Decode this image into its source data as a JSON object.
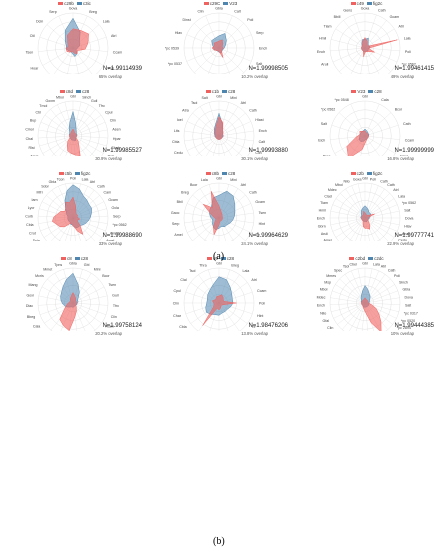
{
  "captions": {
    "a": "(a)",
    "b": "(b)"
  },
  "colors": {
    "red": "#f0625f",
    "blue": "#4f86b0",
    "grid": "#d8d8d8"
  },
  "panels": [
    {
      "id": "p1",
      "s1": "c29b",
      "s2": "c3ic",
      "n": "N=1.99114939",
      "overlap": "65% overlap",
      "labels": [
        "Gova",
        "Breg",
        "Lala",
        "Atrl",
        "Ccam",
        "Poli",
        "Gsol",
        "Salt",
        "Dcin",
        "Bcer",
        "Hoar",
        "Tsen",
        "Ctil",
        "Dcin",
        "Serp"
      ],
      "red": [
        0.55,
        0.55,
        0.6,
        0.45,
        0.35,
        0.15,
        0.2,
        0.15,
        0.1,
        0.15,
        0.2,
        0.2,
        0.15,
        0.2,
        0.4
      ],
      "blue": [
        0.85,
        0.5,
        0.25,
        0.2,
        0.12,
        0.1,
        0.2,
        0.25,
        0.15,
        0.12,
        0.15,
        0.2,
        0.2,
        0.3,
        0.55
      ]
    },
    {
      "id": "p2",
      "s1": "c29C",
      "s2": "V23",
      "n": "N=1.99998505",
      "overlap": "10.2% overlap",
      "labels": [
        "Gbla",
        "Calt",
        "Poli",
        "Serp",
        "Ench",
        "Salt",
        "Bcer",
        "Hpar",
        "Ctrn",
        "Gsol",
        "Amel",
        "*pc 0537",
        "*pc 0539",
        "Hlav",
        "Dinst",
        "Clin"
      ],
      "red": [
        0.2,
        0.25,
        0.15,
        0.1,
        0.12,
        0.1,
        0.1,
        0.3,
        0.1,
        0.08,
        0.1,
        0.15,
        0.2,
        0.15,
        0.2,
        0.18
      ],
      "blue": [
        0.35,
        0.45,
        0.3,
        0.2,
        0.15,
        0.12,
        0.12,
        0.15,
        0.12,
        0.1,
        0.1,
        0.15,
        0.15,
        0.2,
        0.3,
        0.3
      ]
    },
    {
      "id": "p3",
      "s1": "c49",
      "s2": "fig2c",
      "n": "N=1.99461415",
      "overlap": "49% overlap",
      "labels": [
        "Goxa",
        "Cath",
        "Gcam",
        "Atrl",
        "Lala",
        "Poli",
        "*pc 0562",
        "Gmot",
        "Cedu",
        "Lnos",
        "*pc 0451",
        "Amel",
        "Aindr",
        "Aruli",
        "Ench",
        "Hmil",
        "Tiam",
        "Bbill",
        "Gens"
      ],
      "red": [
        0.3,
        0.2,
        0.1,
        0.1,
        0.95,
        0.1,
        0.3,
        0.15,
        0.12,
        0.1,
        0.25,
        0.1,
        0.1,
        0.1,
        0.1,
        0.1,
        0.1,
        0.12,
        0.2
      ],
      "blue": [
        0.25,
        0.3,
        0.15,
        0.12,
        0.15,
        0.12,
        0.1,
        0.12,
        0.1,
        0.1,
        0.12,
        0.1,
        0.1,
        0.1,
        0.1,
        0.1,
        0.1,
        0.15,
        0.25
      ]
    },
    {
      "id": "p4",
      "s1": "c8d",
      "s2": "c28",
      "n": "N=1.99985527",
      "overlap": "30.9% overlap",
      "labels": [
        "Gbl",
        "Sinch",
        "Guil",
        "Tfrc",
        "Cpul",
        "Clin",
        "Asen",
        "Hpar",
        "Sbab",
        "Poli",
        "Vgio",
        "Chit",
        "*pc 0537",
        "*pc 2894",
        "*pc 2903",
        "*pc 4706",
        "Adre",
        "Aedg",
        "Amel",
        "Rlst",
        "Cbal",
        "Cinol",
        "Bup",
        "Cbl",
        "Tmol",
        "Goxm",
        "Mboi"
      ],
      "red": [
        0.2,
        0.15,
        0.1,
        0.1,
        0.1,
        0.1,
        0.1,
        0.1,
        0.1,
        0.1,
        0.2,
        0.3,
        0.6,
        0.55,
        0.5,
        0.45,
        0.3,
        0.2,
        0.1,
        0.1,
        0.1,
        0.1,
        0.1,
        0.1,
        0.1,
        0.12,
        0.15
      ],
      "blue": [
        0.7,
        0.35,
        0.2,
        0.15,
        0.12,
        0.12,
        0.12,
        0.1,
        0.1,
        0.1,
        0.1,
        0.15,
        0.15,
        0.12,
        0.12,
        0.12,
        0.1,
        0.1,
        0.1,
        0.1,
        0.1,
        0.1,
        0.12,
        0.12,
        0.15,
        0.25,
        0.4
      ]
    },
    {
      "id": "p5",
      "s1": "c1b",
      "s2": "c28",
      "n": "N=1.99993880",
      "overlap": "30.1% overlap",
      "labels": [
        "Gbl",
        "Mini",
        "Atrl",
        "Cath",
        "Hlast",
        "Ench",
        "Calt",
        "Clin",
        "Amel",
        "Vglo",
        "Cfor",
        "Rnat",
        "Cala",
        "Gaoc",
        "Amel",
        "Cedu",
        "Cbla",
        "Lits",
        "Ioel",
        "Atra",
        "Tsol",
        "Salt"
      ],
      "red": [
        0.55,
        0.4,
        0.2,
        0.15,
        0.12,
        0.1,
        0.1,
        0.1,
        0.1,
        0.1,
        0.1,
        0.1,
        0.1,
        0.1,
        0.1,
        0.1,
        0.1,
        0.1,
        0.12,
        0.15,
        0.2,
        0.3
      ],
      "blue": [
        0.65,
        0.35,
        0.2,
        0.15,
        0.12,
        0.12,
        0.12,
        0.1,
        0.1,
        0.1,
        0.1,
        0.1,
        0.1,
        0.1,
        0.1,
        0.1,
        0.12,
        0.12,
        0.15,
        0.18,
        0.25,
        0.35
      ]
    },
    {
      "id": "p6",
      "s1": "V23",
      "s2": "c28",
      "n": "N=1.99999999",
      "overlap": "16.8% overlap",
      "labels": [
        "Gbl",
        "Cala",
        "Bcor",
        "Cath",
        "Ccam",
        "Amel",
        "Cfor",
        "Rnat",
        "Vglo",
        "Cam",
        "Breg",
        "Eich",
        "Salt",
        "*pc 0562",
        "*pc 0548"
      ],
      "red": [
        0.15,
        0.1,
        0.1,
        0.1,
        0.1,
        0.1,
        0.1,
        0.15,
        0.4,
        0.8,
        0.6,
        0.25,
        0.15,
        0.2,
        0.15
      ],
      "blue": [
        0.2,
        0.15,
        0.12,
        0.12,
        0.1,
        0.1,
        0.1,
        0.1,
        0.15,
        0.2,
        0.2,
        0.15,
        0.15,
        0.15,
        0.15
      ]
    },
    {
      "id": "p7",
      "s1": "c5b",
      "s2": "fig2c",
      "n": "N=1.99988690",
      "overlap": "33% overlap",
      "labels": [
        "Poli",
        "Lala",
        "Atrl",
        "Cath",
        "Cam",
        "Gcam",
        "Ocla",
        "Serp",
        "*pc 0562",
        "Gmot",
        "Amel",
        "*pc 0917",
        "Gcim",
        "Chit",
        "Gmo",
        "Alis",
        "Aruli",
        "Cedu",
        "Vcln",
        "Dcin",
        "Crot",
        "Cbla",
        "Corb",
        "Lycr",
        "Iarn",
        "Mfri",
        "Sdor",
        "Gbla",
        "Tcon"
      ],
      "red": [
        0.6,
        0.35,
        0.2,
        0.15,
        0.15,
        0.15,
        0.12,
        0.15,
        0.2,
        0.15,
        0.15,
        0.3,
        0.55,
        0.4,
        0.25,
        0.2,
        0.15,
        0.2,
        0.35,
        0.45,
        0.5,
        0.6,
        0.55,
        0.45,
        0.4,
        0.3,
        0.35,
        0.5,
        0.45
      ],
      "blue": [
        0.95,
        0.85,
        0.7,
        0.65,
        0.6,
        0.6,
        0.55,
        0.5,
        0.45,
        0.4,
        0.35,
        0.3,
        0.3,
        0.3,
        0.25,
        0.2,
        0.2,
        0.15,
        0.15,
        0.15,
        0.15,
        0.15,
        0.15,
        0.15,
        0.2,
        0.25,
        0.35,
        0.55,
        0.8
      ]
    },
    {
      "id": "p8",
      "s1": "c8b",
      "s2": "c28",
      "n": "N=1.99964629",
      "overlap": "24.1% overlap",
      "labels": [
        "Gbl",
        "Mini",
        "Atrl",
        "Cath",
        "Gcam",
        "Tsen",
        "Hlnt",
        "Tfr",
        "Cpul",
        "Clin",
        "Asen",
        "Rnat",
        "Cala",
        "Vglo",
        "Ocla",
        "Amel",
        "Serp",
        "Gaoc",
        "Bbil",
        "Breg",
        "Bcor",
        "Lala"
      ],
      "red": [
        0.35,
        0.2,
        0.15,
        0.12,
        0.1,
        0.1,
        0.1,
        0.1,
        0.1,
        0.1,
        0.1,
        0.2,
        0.5,
        0.3,
        0.15,
        0.1,
        0.1,
        0.15,
        0.25,
        0.6,
        0.35,
        0.8
      ],
      "blue": [
        0.65,
        0.8,
        0.75,
        0.6,
        0.5,
        0.45,
        0.4,
        0.35,
        0.3,
        0.3,
        0.25,
        0.3,
        0.35,
        0.3,
        0.25,
        0.2,
        0.2,
        0.25,
        0.3,
        0.35,
        0.4,
        0.6
      ]
    },
    {
      "id": "p9",
      "s1": "c2b",
      "s2": "fig2c",
      "n": "N=1.99777741",
      "overlap": "22.9% overlap",
      "labels": [
        "Gbl",
        "Poli",
        "Cath",
        "Cath",
        "Atrl",
        "Lala",
        "*pc 0562",
        "Salt",
        "Dova",
        "Hlav",
        "Anar",
        "Cedu",
        "Hspo",
        "*pc 0913",
        "*pc 4706",
        "Adrd",
        "*pc 2894",
        "*pc 4691",
        "Tsen",
        "Adre",
        "Asal",
        "Amel",
        "Aruli",
        "Gbrn",
        "Ench",
        "Hmil",
        "Tiam",
        "Clad",
        "Mdec",
        "Mbol",
        "Nilo",
        "Goxa"
      ],
      "red": [
        0.15,
        0.12,
        0.1,
        0.1,
        0.1,
        0.15,
        0.3,
        0.1,
        0.1,
        0.1,
        0.1,
        0.1,
        0.15,
        0.25,
        0.35,
        0.3,
        0.3,
        0.25,
        0.15,
        0.1,
        0.1,
        0.1,
        0.1,
        0.1,
        0.1,
        0.1,
        0.1,
        0.1,
        0.1,
        0.1,
        0.12,
        0.2
      ],
      "blue": [
        0.35,
        0.3,
        0.25,
        0.2,
        0.2,
        0.2,
        0.15,
        0.15,
        0.12,
        0.12,
        0.1,
        0.1,
        0.1,
        0.1,
        0.12,
        0.1,
        0.1,
        0.1,
        0.1,
        0.1,
        0.1,
        0.1,
        0.1,
        0.1,
        0.12,
        0.12,
        0.12,
        0.12,
        0.15,
        0.2,
        0.25,
        0.3
      ]
    },
    {
      "id": "p10",
      "s1": "c8",
      "s2": "c28",
      "n": "N=1.99758124",
      "overlap": "20.2% overlap",
      "labels": [
        "Gbla",
        "Gbl",
        "Mini",
        "Bcor",
        "Tsen",
        "Guil",
        "Tfrc",
        "Clin",
        "Asen",
        "Rnat",
        "Chit",
        "Vglo",
        "*pc 0920",
        "*pc 0404",
        "*pc 0410",
        "Cala",
        "Bbeg",
        "Dlac",
        "Goxi",
        "Mang",
        "Mcris",
        "Mmet",
        "Tpns"
      ],
      "red": [
        0.3,
        0.2,
        0.15,
        0.1,
        0.1,
        0.1,
        0.1,
        0.1,
        0.1,
        0.15,
        0.25,
        0.4,
        0.8,
        0.7,
        0.6,
        0.3,
        0.2,
        0.15,
        0.1,
        0.1,
        0.1,
        0.15,
        0.2
      ],
      "blue": [
        0.85,
        0.55,
        0.35,
        0.2,
        0.15,
        0.15,
        0.12,
        0.12,
        0.1,
        0.1,
        0.1,
        0.12,
        0.12,
        0.12,
        0.15,
        0.2,
        0.25,
        0.3,
        0.35,
        0.4,
        0.45,
        0.55,
        0.7
      ]
    },
    {
      "id": "p11",
      "s1": "c9",
      "s2": "c28",
      "n": "N=1.98476206",
      "overlap": "13.8% overlap",
      "labels": [
        "Gbl",
        "Breg",
        "Lala",
        "Atrl",
        "Ccam",
        "Poli",
        "Hlnt",
        "Tfr",
        "Asen",
        "Tsen",
        "Gcsl",
        "Bgoli",
        "Cath",
        "Cbla",
        "Char",
        "Clin",
        "Cpul",
        "Clal",
        "Tsol",
        "Thra"
      ],
      "red": [
        0.2,
        0.25,
        0.2,
        0.15,
        0.15,
        0.5,
        0.15,
        0.1,
        0.1,
        0.15,
        0.2,
        0.15,
        0.8,
        0.2,
        0.15,
        0.15,
        0.2,
        0.15,
        0.15,
        0.2
      ],
      "blue": [
        0.75,
        0.7,
        0.55,
        0.45,
        0.4,
        0.4,
        0.35,
        0.3,
        0.3,
        0.3,
        0.35,
        0.35,
        0.4,
        0.45,
        0.4,
        0.35,
        0.35,
        0.4,
        0.45,
        0.55
      ]
    },
    {
      "id": "p12",
      "s1": "c2bd",
      "s2": "c2dc",
      "n": "N=1.99444385",
      "overlap": "10% overlap",
      "labels": [
        "Gbl",
        "Lala",
        "Atrl",
        "Cath",
        "Poli",
        "Sinch",
        "Gbla",
        "Dova",
        "Salt",
        "*pc 0317",
        "*pc 0520",
        "*pc 2894",
        "*pc 2903",
        "*pc 4691",
        "*pc 4706",
        "Gaoc",
        "Amel",
        "Aspl",
        "Bup",
        "Chit",
        "Clin",
        "Gfal",
        "Nilo",
        "Ench",
        "Mdec",
        "Mbol",
        "Msp",
        "Mmes",
        "Spec",
        "Tsol",
        "Cbel"
      ],
      "red": [
        0.15,
        0.12,
        0.1,
        0.1,
        0.1,
        0.1,
        0.1,
        0.1,
        0.1,
        0.2,
        0.35,
        0.5,
        0.7,
        0.95,
        0.6,
        0.3,
        0.2,
        0.15,
        0.12,
        0.1,
        0.1,
        0.1,
        0.1,
        0.1,
        0.1,
        0.1,
        0.1,
        0.1,
        0.1,
        0.1,
        0.12
      ],
      "blue": [
        0.5,
        0.4,
        0.3,
        0.25,
        0.2,
        0.15,
        0.15,
        0.12,
        0.12,
        0.12,
        0.12,
        0.12,
        0.12,
        0.12,
        0.12,
        0.12,
        0.12,
        0.12,
        0.1,
        0.1,
        0.1,
        0.1,
        0.1,
        0.1,
        0.1,
        0.12,
        0.12,
        0.15,
        0.2,
        0.25,
        0.35
      ]
    }
  ]
}
